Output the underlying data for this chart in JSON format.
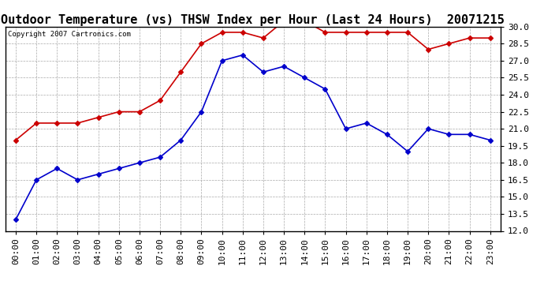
{
  "title": "Outdoor Temperature (vs) THSW Index per Hour (Last 24 Hours)  20071215",
  "copyright": "Copyright 2007 Cartronics.com",
  "x_labels": [
    "00:00",
    "01:00",
    "02:00",
    "03:00",
    "04:00",
    "05:00",
    "06:00",
    "07:00",
    "08:00",
    "09:00",
    "10:00",
    "11:00",
    "12:00",
    "13:00",
    "14:00",
    "15:00",
    "16:00",
    "17:00",
    "18:00",
    "19:00",
    "20:00",
    "21:00",
    "22:00",
    "23:00"
  ],
  "thsw_data": [
    20.0,
    21.5,
    21.5,
    21.5,
    22.0,
    22.5,
    22.5,
    23.5,
    26.0,
    28.5,
    29.5,
    29.5,
    29.0,
    30.5,
    30.5,
    29.5,
    29.5,
    29.5,
    29.5,
    29.5,
    28.0,
    28.5,
    29.0,
    29.0
  ],
  "temp_data": [
    13.0,
    16.5,
    17.5,
    16.5,
    17.0,
    17.5,
    18.0,
    18.5,
    20.0,
    22.5,
    27.0,
    27.5,
    26.0,
    26.5,
    25.5,
    24.5,
    21.0,
    21.5,
    20.5,
    19.0,
    21.0,
    20.5,
    20.5,
    20.0
  ],
  "thsw_color": "#cc0000",
  "temp_color": "#0000cc",
  "ylim_min": 12.0,
  "ylim_max": 30.0,
  "yticks": [
    12.0,
    13.5,
    15.0,
    16.5,
    18.0,
    19.5,
    21.0,
    22.5,
    24.0,
    25.5,
    27.0,
    28.5,
    30.0
  ],
  "background_color": "#ffffff",
  "plot_bg_color": "#ffffff",
  "grid_color": "#aaaaaa",
  "title_fontsize": 11,
  "tick_fontsize": 8,
  "marker": "D",
  "marker_size": 3
}
